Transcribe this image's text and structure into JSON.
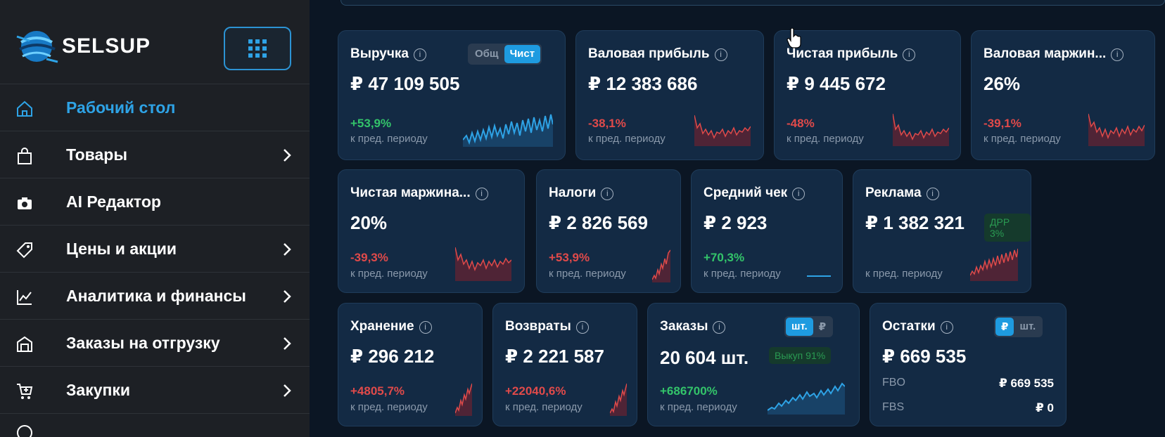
{
  "brand": {
    "name": "SELSUP"
  },
  "colors": {
    "accent": "#2ea3e6",
    "positive": "#33c46a",
    "negative": "#e04a4a",
    "card_bg": "#132a44",
    "sidebar_bg": "#1d2025"
  },
  "sidebar": {
    "items": [
      {
        "label": "Рабочий стол",
        "icon": "home-icon",
        "active": true,
        "has_chevron": false
      },
      {
        "label": "Товары",
        "icon": "shopping-bag-icon",
        "has_chevron": true
      },
      {
        "label": "AI Редактор",
        "icon": "camera-icon",
        "has_chevron": false
      },
      {
        "label": "Цены и акции",
        "icon": "price-tag-icon",
        "has_chevron": true
      },
      {
        "label": "Аналитика и финансы",
        "icon": "chart-line-icon",
        "has_chevron": true
      },
      {
        "label": "Заказы на отгрузку",
        "icon": "warehouse-icon",
        "has_chevron": true
      },
      {
        "label": "Закупки",
        "icon": "cart-plus-icon",
        "has_chevron": true
      }
    ]
  },
  "cards": {
    "revenue": {
      "title": "Выручка",
      "value": "₽ 47 109 505",
      "change": "+53,9%",
      "sub": "к пред. периоду",
      "toggle": [
        "Общ",
        "Чист"
      ]
    },
    "gross_profit": {
      "title": "Валовая прибыль",
      "value": "₽ 12 383 686",
      "change": "-38,1%",
      "sub": "к пред. периоду"
    },
    "net_profit": {
      "title": "Чистая прибыль",
      "value": "₽ 9 445 672",
      "change": "-48%",
      "sub": "к пред. периоду"
    },
    "gross_margin": {
      "title": "Валовая маржин...",
      "value": "26%",
      "change": "-39,1%",
      "sub": "к пред. периоду"
    },
    "net_margin": {
      "title": "Чистая маржина...",
      "value": "20%",
      "change": "-39,3%",
      "sub": "к пред. периоду"
    },
    "taxes": {
      "title": "Налоги",
      "value": "₽ 2 826 569",
      "change": "+53,9%",
      "sub": "к пред. периоду"
    },
    "avg_check": {
      "title": "Средний чек",
      "value": "₽ 2 923",
      "change": "+70,3%",
      "sub": "к пред. периоду"
    },
    "ads": {
      "title": "Реклама",
      "value": "₽ 1 382 321",
      "badge": "ДРР 3%",
      "sub": "к пред. периоду"
    },
    "storage": {
      "title": "Хранение",
      "value": "₽ 296 212",
      "change": "+4805,7%",
      "sub": "к пред. периоду"
    },
    "returns": {
      "title": "Возвраты",
      "value": "₽ 2 221 587",
      "change": "+22040,6%",
      "sub": "к пред. периоду"
    },
    "orders": {
      "title": "Заказы",
      "value": "20 604 шт.",
      "badge": "Выкуп 91%",
      "change": "+686700%",
      "sub": "к пред. периоду",
      "toggle": [
        "шт.",
        "₽"
      ]
    },
    "stock": {
      "title": "Остатки",
      "value": "₽ 669 535",
      "toggle": [
        "₽",
        "шт."
      ],
      "rows": [
        {
          "label": "FBO",
          "value": "₽ 669 535"
        },
        {
          "label": "FBS",
          "value": "₽ 0"
        }
      ]
    }
  }
}
